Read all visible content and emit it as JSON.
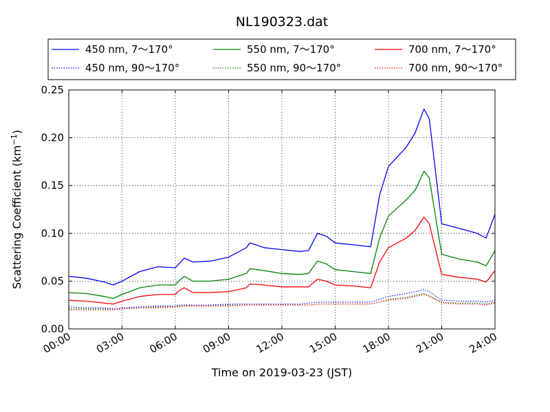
{
  "chart_data": {
    "type": "line",
    "title": "NL190323.dat",
    "xlabel": "Time on 2019-03-23 (JST)",
    "ylabel": "Scattering Coefficient (km",
    "ylabel_sup": "−1",
    "ylabel_end": ")",
    "xlim": [
      0,
      24
    ],
    "ylim": [
      0,
      0.25
    ],
    "x_ticks": [
      0,
      3,
      6,
      9,
      12,
      15,
      18,
      21,
      24
    ],
    "x_tick_labels": [
      "00:00",
      "03:00",
      "06:00",
      "09:00",
      "12:00",
      "15:00",
      "18:00",
      "21:00",
      "24:00"
    ],
    "y_ticks": [
      0,
      0.05,
      0.1,
      0.15,
      0.2,
      0.25
    ],
    "y_tick_labels": [
      "0.00",
      "0.05",
      "0.10",
      "0.15",
      "0.20",
      "0.25"
    ],
    "grid": true,
    "legend_position": "top",
    "x": [
      0,
      1,
      2,
      2.5,
      3,
      4,
      5,
      6,
      6.2,
      6.5,
      7,
      8,
      9,
      10,
      10.2,
      11,
      12,
      13,
      13.5,
      14,
      14.5,
      15,
      16,
      17,
      17.5,
      18,
      19,
      19.5,
      20,
      20.3,
      21,
      22,
      23,
      23.5,
      24
    ],
    "series": [
      {
        "name": "450 nm, 7～170°",
        "color": "#0000ff",
        "style": "solid",
        "values": [
          0.055,
          0.053,
          0.049,
          0.046,
          0.05,
          0.06,
          0.065,
          0.064,
          0.068,
          0.074,
          0.07,
          0.071,
          0.075,
          0.085,
          0.09,
          0.085,
          0.083,
          0.081,
          0.082,
          0.1,
          0.097,
          0.09,
          0.088,
          0.086,
          0.14,
          0.17,
          0.19,
          0.205,
          0.23,
          0.22,
          0.11,
          0.105,
          0.1,
          0.095,
          0.12
        ]
      },
      {
        "name": "450 nm, 90～170°",
        "color": "#0000ff",
        "style": "dotted",
        "values": [
          0.023,
          0.022,
          0.022,
          0.021,
          0.022,
          0.023,
          0.024,
          0.024,
          0.025,
          0.025,
          0.025,
          0.025,
          0.026,
          0.026,
          0.026,
          0.026,
          0.026,
          0.026,
          0.027,
          0.028,
          0.028,
          0.028,
          0.028,
          0.028,
          0.031,
          0.034,
          0.037,
          0.039,
          0.041,
          0.039,
          0.03,
          0.029,
          0.029,
          0.028,
          0.03
        ]
      },
      {
        "name": "550 nm, 7～170°",
        "color": "#008000",
        "style": "solid",
        "values": [
          0.038,
          0.037,
          0.034,
          0.032,
          0.036,
          0.043,
          0.046,
          0.046,
          0.05,
          0.055,
          0.05,
          0.05,
          0.052,
          0.058,
          0.063,
          0.061,
          0.058,
          0.057,
          0.058,
          0.071,
          0.068,
          0.062,
          0.06,
          0.058,
          0.095,
          0.118,
          0.135,
          0.145,
          0.165,
          0.158,
          0.078,
          0.073,
          0.07,
          0.066,
          0.082
        ]
      },
      {
        "name": "550 nm, 90～170°",
        "color": "#008000",
        "style": "dotted",
        "values": [
          0.021,
          0.021,
          0.021,
          0.02,
          0.021,
          0.022,
          0.023,
          0.023,
          0.024,
          0.024,
          0.024,
          0.024,
          0.025,
          0.025,
          0.025,
          0.025,
          0.025,
          0.025,
          0.025,
          0.026,
          0.026,
          0.026,
          0.026,
          0.026,
          0.028,
          0.031,
          0.033,
          0.035,
          0.037,
          0.035,
          0.028,
          0.027,
          0.027,
          0.026,
          0.028
        ]
      },
      {
        "name": "700 nm, 7～170°",
        "color": "#ff0000",
        "style": "solid",
        "values": [
          0.03,
          0.029,
          0.027,
          0.026,
          0.029,
          0.034,
          0.036,
          0.036,
          0.04,
          0.043,
          0.038,
          0.038,
          0.039,
          0.043,
          0.047,
          0.046,
          0.044,
          0.044,
          0.044,
          0.052,
          0.05,
          0.046,
          0.045,
          0.043,
          0.07,
          0.085,
          0.095,
          0.103,
          0.117,
          0.11,
          0.057,
          0.054,
          0.052,
          0.049,
          0.061
        ]
      },
      {
        "name": "700 nm, 90～170°",
        "color": "#ff0000",
        "style": "dotted",
        "values": [
          0.02,
          0.02,
          0.02,
          0.02,
          0.021,
          0.022,
          0.022,
          0.023,
          0.023,
          0.024,
          0.024,
          0.024,
          0.024,
          0.025,
          0.025,
          0.025,
          0.025,
          0.025,
          0.025,
          0.026,
          0.026,
          0.026,
          0.026,
          0.026,
          0.028,
          0.03,
          0.032,
          0.034,
          0.036,
          0.034,
          0.027,
          0.026,
          0.026,
          0.025,
          0.027
        ]
      }
    ]
  }
}
